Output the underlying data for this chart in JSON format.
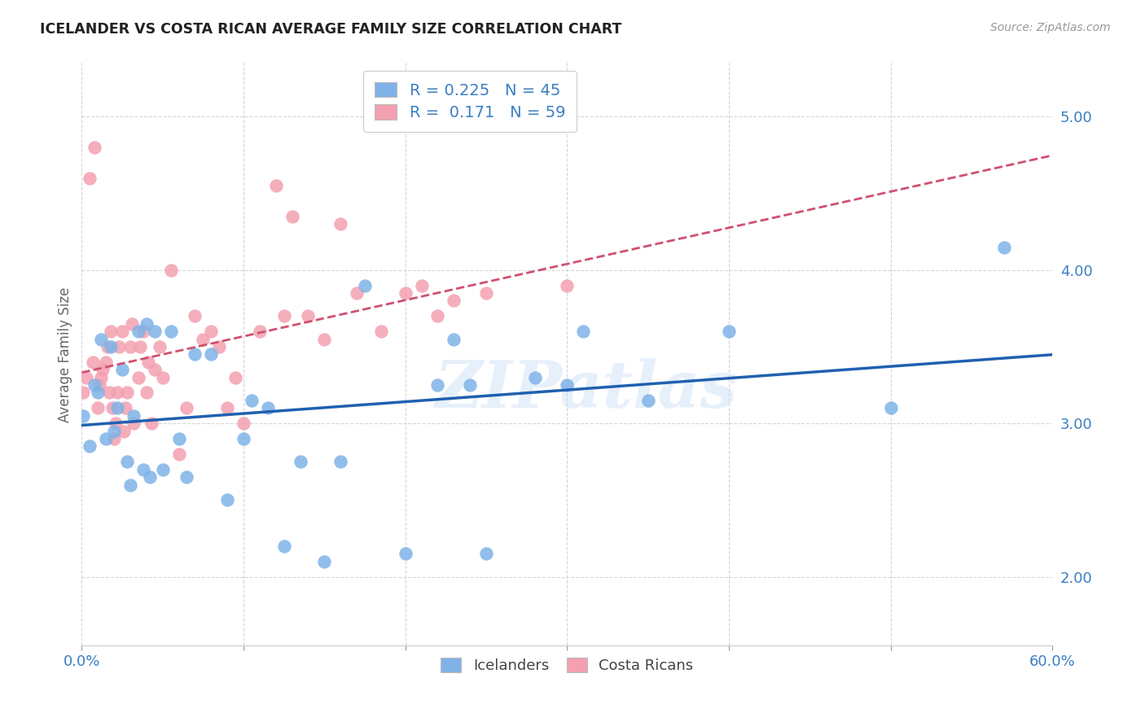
{
  "title": "ICELANDER VS COSTA RICAN AVERAGE FAMILY SIZE CORRELATION CHART",
  "source": "Source: ZipAtlas.com",
  "ylabel": "Average Family Size",
  "xlabel_icelanders": "Icelanders",
  "xlabel_costa_ricans": "Costa Ricans",
  "xlim": [
    0.0,
    0.6
  ],
  "ylim": [
    1.55,
    5.35
  ],
  "yticks": [
    2.0,
    3.0,
    4.0,
    5.0
  ],
  "xticks": [
    0.0,
    0.1,
    0.2,
    0.3,
    0.4,
    0.5,
    0.6
  ],
  "r_icelanders": 0.225,
  "n_icelanders": 45,
  "r_costa_ricans": 0.171,
  "n_costa_ricans": 59,
  "icelander_color": "#7fb3e8",
  "costa_rican_color": "#f4a0b0",
  "icelander_line_color": "#2060b0",
  "costa_rican_line_color": "#d05070",
  "watermark": "ZIPatlas",
  "icelanders_x": [
    0.001,
    0.005,
    0.008,
    0.01,
    0.012,
    0.015,
    0.018,
    0.02,
    0.022,
    0.025,
    0.028,
    0.03,
    0.032,
    0.035,
    0.038,
    0.04,
    0.042,
    0.045,
    0.05,
    0.055,
    0.06,
    0.065,
    0.07,
    0.08,
    0.09,
    0.1,
    0.105,
    0.115,
    0.125,
    0.135,
    0.15,
    0.16,
    0.175,
    0.2,
    0.22,
    0.23,
    0.24,
    0.25,
    0.28,
    0.3,
    0.31,
    0.35,
    0.4,
    0.5,
    0.57
  ],
  "icelanders_y": [
    3.05,
    2.85,
    3.25,
    3.2,
    3.55,
    2.9,
    3.5,
    2.95,
    3.1,
    3.35,
    2.75,
    2.6,
    3.05,
    3.6,
    2.7,
    3.65,
    2.65,
    3.6,
    2.7,
    3.6,
    2.9,
    2.65,
    3.45,
    3.45,
    2.5,
    2.9,
    3.15,
    3.1,
    2.2,
    2.75,
    2.1,
    2.75,
    3.9,
    2.15,
    3.25,
    3.55,
    3.25,
    2.15,
    3.3,
    3.25,
    3.6,
    3.15,
    3.6,
    3.1,
    4.15
  ],
  "costa_ricans_x": [
    0.001,
    0.003,
    0.005,
    0.007,
    0.008,
    0.01,
    0.011,
    0.012,
    0.013,
    0.015,
    0.016,
    0.017,
    0.018,
    0.019,
    0.02,
    0.021,
    0.022,
    0.023,
    0.025,
    0.026,
    0.027,
    0.028,
    0.03,
    0.031,
    0.032,
    0.035,
    0.036,
    0.038,
    0.04,
    0.041,
    0.043,
    0.045,
    0.048,
    0.05,
    0.055,
    0.06,
    0.065,
    0.07,
    0.075,
    0.08,
    0.085,
    0.09,
    0.095,
    0.1,
    0.11,
    0.12,
    0.125,
    0.13,
    0.14,
    0.15,
    0.16,
    0.17,
    0.185,
    0.2,
    0.21,
    0.22,
    0.23,
    0.25,
    0.3
  ],
  "costa_ricans_y": [
    3.2,
    3.3,
    4.6,
    3.4,
    4.8,
    3.1,
    3.25,
    3.3,
    3.35,
    3.4,
    3.5,
    3.2,
    3.6,
    3.1,
    2.9,
    3.0,
    3.2,
    3.5,
    3.6,
    2.95,
    3.1,
    3.2,
    3.5,
    3.65,
    3.0,
    3.3,
    3.5,
    3.6,
    3.2,
    3.4,
    3.0,
    3.35,
    3.5,
    3.3,
    4.0,
    2.8,
    3.1,
    3.7,
    3.55,
    3.6,
    3.5,
    3.1,
    3.3,
    3.0,
    3.6,
    4.55,
    3.7,
    4.35,
    3.7,
    3.55,
    4.3,
    3.85,
    3.6,
    3.85,
    3.9,
    3.7,
    3.8,
    3.85,
    3.9
  ]
}
